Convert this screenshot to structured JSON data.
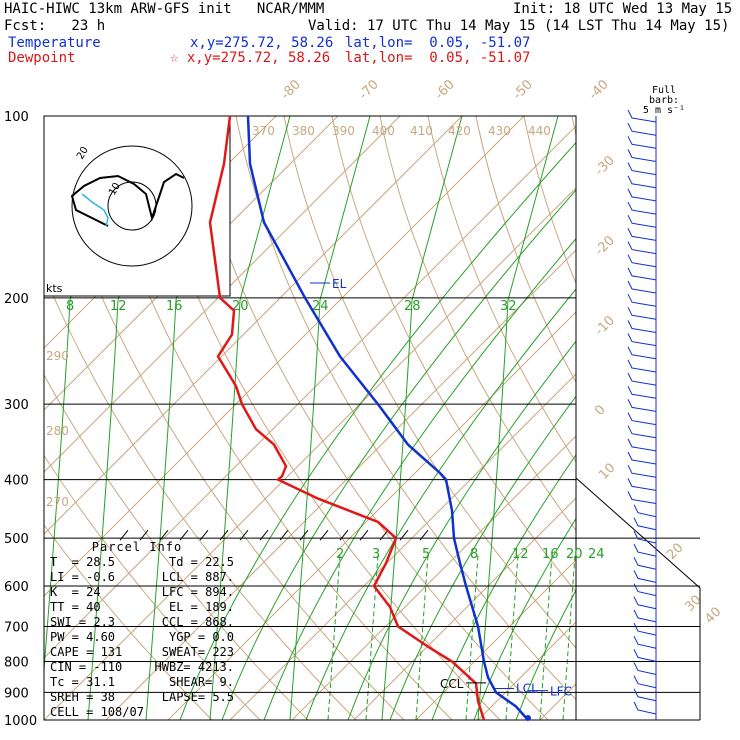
{
  "header": {
    "line1_left": "HAIC-HIWC 13km ARW-GFS init   NCAR/MMM",
    "line1_right": "Init: 18 UTC Wed 13 May 15",
    "line2_left": "Fcst:   23 h",
    "line2_right": "Valid: 17 UTC Thu 14 May 15 (14 LST Thu 14 May 15)",
    "temp_label": "Temperature",
    "temp_xy": "x,y=275.72, 58.26",
    "temp_latlon": "lat,lon=  0.05, -51.07",
    "dew_label": "Dewpoint",
    "dew_xy": "☆ x,y=275.72, 58.26",
    "dew_latlon": "lat,lon=  0.05, -51.07"
  },
  "barb_key": {
    "line1": "Full barb:",
    "line2": "5 m s⁻¹"
  },
  "parcel_info": {
    "title": "Parcel Info",
    "rows": [
      [
        "T  =",
        "28.5",
        "Td =",
        "22.5"
      ],
      [
        "LI =",
        "-0.6",
        "LCL =",
        "887."
      ],
      [
        "K  =",
        "24",
        "LFC =",
        "894."
      ],
      [
        "TT =",
        "40",
        "EL =",
        "189."
      ],
      [
        "SWI =",
        "2.3",
        "CCL =",
        "868."
      ],
      [
        "PW =",
        "4.60",
        "YGP =",
        "0.0"
      ],
      [
        "CAPE =",
        "131",
        "SWEAT=",
        "223"
      ],
      [
        "CIN =",
        "-110",
        "HWBZ=",
        "4213."
      ],
      [
        "Tc =",
        "31.1",
        "SHEAR=",
        "9."
      ],
      [
        "SREH =",
        "38",
        "LAPSE=",
        "5.5"
      ],
      [
        "CELL =",
        "108/07",
        "",
        ""
      ]
    ]
  },
  "colors": {
    "temperature": "#1030d0",
    "dewpoint": "#e01818",
    "isotherm": "#c8a880",
    "mixing_ratio": "#28a028",
    "grid": "#000000"
  },
  "chart_data": {
    "type": "line",
    "title": "",
    "ylabel": "",
    "pressure_ticks": [
      100,
      200,
      300,
      400,
      500,
      600,
      700,
      800,
      900,
      1000
    ],
    "isotherm_labels": [
      -80,
      -70,
      -60,
      -50,
      -40,
      -30,
      -20,
      -10,
      0,
      10,
      20,
      30,
      40
    ],
    "theta_labels": [
      370,
      380,
      390,
      400,
      410,
      420,
      430,
      440,
      290,
      280,
      270
    ],
    "mixing_ratio_labels_upper": [
      8,
      12,
      16,
      20,
      24,
      28,
      32
    ],
    "mixing_ratio_labels_lower": [
      2,
      3,
      5,
      8,
      12,
      16,
      20,
      24
    ],
    "level_markers": [
      "EL",
      "CCL",
      "LCL",
      "LFC"
    ],
    "series": [
      {
        "name": "Temperature",
        "points": [
          [
            100,
            248
          ],
          [
            120,
            250
          ],
          [
            150,
            264
          ],
          [
            200,
            305
          ],
          [
            250,
            340
          ],
          [
            300,
            378
          ],
          [
            350,
            408
          ],
          [
            390,
            440
          ],
          [
            400,
            446
          ],
          [
            450,
            452
          ],
          [
            500,
            454
          ],
          [
            550,
            460
          ],
          [
            600,
            466
          ],
          [
            700,
            478
          ],
          [
            800,
            484
          ],
          [
            850,
            488
          ],
          [
            900,
            496
          ],
          [
            950,
            516
          ],
          [
            1000,
            528
          ]
        ]
      },
      {
        "name": "Dewpoint",
        "points": [
          [
            100,
            230
          ],
          [
            120,
            224
          ],
          [
            150,
            210
          ],
          [
            200,
            220
          ],
          [
            210,
            234
          ],
          [
            230,
            232
          ],
          [
            250,
            218
          ],
          [
            280,
            236
          ],
          [
            300,
            242
          ],
          [
            330,
            256
          ],
          [
            350,
            274
          ],
          [
            380,
            286
          ],
          [
            395,
            282
          ],
          [
            400,
            278
          ],
          [
            430,
            318
          ],
          [
            470,
            378
          ],
          [
            500,
            396
          ],
          [
            550,
            386
          ],
          [
            600,
            374
          ],
          [
            650,
            390
          ],
          [
            700,
            398
          ],
          [
            760,
            430
          ],
          [
            800,
            452
          ],
          [
            870,
            476
          ],
          [
            930,
            478
          ],
          [
            1000,
            484
          ]
        ]
      }
    ],
    "wind_barbs_count": 46
  }
}
